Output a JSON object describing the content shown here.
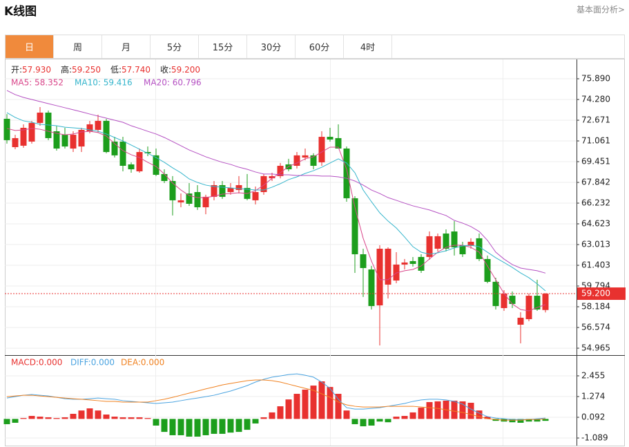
{
  "header": {
    "title": "K线图",
    "link": "基本面分析>"
  },
  "tabs": [
    "日",
    "周",
    "月",
    "5分",
    "15分",
    "30分",
    "60分",
    "4时"
  ],
  "active_tab": 0,
  "chart_data": [
    {
      "type": "candlestick",
      "info": [
        {
          "label": "开:",
          "value": "57.930"
        },
        {
          "label": "高:",
          "value": "59.250"
        },
        {
          "label": "低:",
          "value": "57.740"
        },
        {
          "label": "收:",
          "value": "59.200"
        }
      ],
      "up_color": "#e8312f",
      "down_color": "#1c9e1c",
      "open": [
        72.78,
        70.58,
        70.69,
        71.01,
        72.46,
        73.26,
        71.81,
        71.54,
        70.47,
        70.63,
        71.81,
        71.92,
        72.62,
        71.01,
        71.01,
        69.24,
        68.7,
        70.2,
        69.94,
        68.49,
        67.95,
        66.29,
        66.98,
        67.09,
        65.91,
        66.72,
        67.63,
        67.09,
        67.25,
        67.41,
        66.45,
        67.09,
        68.16,
        68.33,
        69.24,
        69.13,
        69.77,
        69.94,
        69.4,
        71.38,
        71.28,
        70.47,
        66.61,
        62.26,
        61.08,
        58.29,
        59.9,
        60.22,
        61.46,
        61.73,
        62.05,
        62.05,
        62.69,
        63.87,
        64.03,
        62.96,
        62.91,
        63.5,
        61.89,
        60.12,
        58.08,
        59.04,
        56.79,
        57.22,
        59.04,
        57.93
      ],
      "high": [
        73.15,
        71.54,
        72.35,
        72.62,
        73.69,
        73.42,
        72.24,
        72.08,
        71.81,
        72.08,
        72.62,
        73.1,
        72.78,
        71.38,
        71.38,
        69.4,
        70.47,
        70.63,
        70.47,
        68.86,
        68.33,
        66.98,
        67.79,
        67.63,
        66.88,
        67.95,
        67.95,
        67.79,
        68.33,
        68.49,
        67.52,
        68.49,
        68.59,
        69.35,
        69.67,
        70.2,
        70.47,
        70.1,
        71.81,
        72.08,
        72.35,
        70.63,
        66.77,
        62.69,
        61.35,
        62.96,
        62.8,
        62.42,
        61.89,
        62.05,
        62.26,
        64.03,
        63.87,
        64.19,
        64.84,
        63.23,
        63.5,
        63.87,
        62.16,
        60.44,
        59.47,
        59.37,
        57.76,
        59.21,
        60.28,
        59.25
      ],
      "low": [
        70.85,
        70.42,
        70.53,
        70.85,
        72.24,
        71.12,
        70.31,
        70.47,
        70.2,
        70.2,
        71.65,
        71.71,
        70.1,
        69.77,
        68.7,
        68.59,
        68.59,
        69.88,
        68.33,
        67.79,
        65.27,
        65.91,
        66.02,
        65.7,
        65.37,
        66.45,
        66.56,
        66.88,
        66.98,
        66.45,
        66.13,
        66.88,
        67.95,
        68.16,
        68.7,
        68.92,
        69.56,
        68.86,
        69.13,
        71.01,
        70.47,
        66.34,
        60.81,
        58.94,
        57.97,
        55.18,
        58.83,
        60.01,
        61.08,
        61.3,
        60.81,
        61.83,
        62.48,
        62.48,
        62.16,
        62.05,
        62.69,
        61.73,
        60.01,
        57.97,
        57.86,
        58.08,
        55.34,
        57.06,
        57.86,
        57.74
      ],
      "close": [
        71.12,
        71.28,
        72.08,
        72.46,
        73.26,
        71.28,
        70.47,
        70.63,
        71.54,
        71.92,
        72.35,
        72.62,
        70.2,
        69.94,
        69.13,
        68.86,
        70.2,
        70.1,
        68.43,
        67.95,
        66.45,
        66.45,
        66.18,
        65.91,
        66.72,
        67.63,
        66.72,
        67.41,
        67.63,
        66.56,
        67.09,
        68.33,
        68.33,
        69.13,
        68.86,
        69.94,
        69.94,
        69.13,
        71.38,
        71.17,
        70.47,
        66.61,
        62.26,
        61.19,
        58.24,
        62.69,
        62.69,
        61.46,
        61.62,
        61.51,
        60.98,
        63.66,
        63.66,
        62.69,
        62.8,
        62.26,
        63.23,
        61.89,
        60.12,
        58.24,
        59.21,
        58.4,
        57.33,
        59.04,
        57.97,
        59.2
      ],
      "series": [
        {
          "name": "MA5: 58.352",
          "color": "#d9468a",
          "values": [
            72.03,
            71.87,
            71.92,
            72.03,
            71.97,
            71.81,
            71.65,
            71.54,
            71.6,
            71.76,
            71.81,
            71.71,
            71.44,
            70.85,
            70.31,
            69.99,
            69.77,
            69.4,
            69.08,
            68.49,
            67.79,
            67.25,
            66.82,
            66.66,
            66.66,
            66.77,
            66.93,
            66.98,
            67.04,
            66.98,
            67.2,
            67.63,
            68.16,
            68.59,
            69.08,
            69.35,
            69.67,
            69.83,
            70.2,
            70.58,
            70.58,
            68.86,
            65.91,
            63.5,
            61.73,
            60.28,
            60.28,
            60.81,
            60.98,
            61.08,
            61.35,
            61.89,
            62.42,
            62.8,
            62.96,
            62.96,
            62.8,
            62.42,
            61.35,
            60.28,
            59.21,
            58.4,
            57.97,
            57.86,
            58.13,
            58.352
          ]
        },
        {
          "name": "MA10: 59.416",
          "color": "#35b5cc",
          "values": [
            73.26,
            72.89,
            72.62,
            72.51,
            72.35,
            72.3,
            72.24,
            72.13,
            72.08,
            72.03,
            71.92,
            71.81,
            71.6,
            71.33,
            71.06,
            70.74,
            70.42,
            70.1,
            69.77,
            69.4,
            68.97,
            68.59,
            68.11,
            67.84,
            67.63,
            67.52,
            67.47,
            67.41,
            67.36,
            67.31,
            67.25,
            67.25,
            67.47,
            67.74,
            68.06,
            68.27,
            68.54,
            68.75,
            69.02,
            69.35,
            69.67,
            69.35,
            68.59,
            67.25,
            66.34,
            65.48,
            64.84,
            64.3,
            63.6,
            62.85,
            62.42,
            62.26,
            62.37,
            62.53,
            62.75,
            62.91,
            62.96,
            62.85,
            62.42,
            61.99,
            61.62,
            61.24,
            60.81,
            60.44,
            59.96,
            59.416
          ]
        },
        {
          "name": "MA20: 60.796",
          "color": "#b44fc2",
          "values": [
            74.98,
            74.66,
            74.44,
            74.28,
            74.12,
            73.96,
            73.8,
            73.64,
            73.48,
            73.32,
            73.15,
            72.99,
            72.83,
            72.67,
            72.51,
            72.24,
            72.03,
            71.81,
            71.6,
            71.33,
            71.01,
            70.69,
            70.36,
            70.1,
            69.83,
            69.61,
            69.4,
            69.24,
            69.02,
            68.86,
            68.65,
            68.49,
            68.49,
            68.43,
            68.43,
            68.38,
            68.38,
            68.38,
            68.33,
            68.33,
            68.27,
            68.16,
            67.95,
            67.63,
            67.25,
            66.98,
            66.66,
            66.45,
            66.23,
            66.02,
            65.86,
            65.7,
            65.48,
            65.27,
            64.89,
            64.68,
            64.41,
            64.03,
            63.34,
            62.42,
            61.89,
            61.46,
            61.19,
            61.08,
            60.98,
            60.796
          ]
        }
      ],
      "last_price": {
        "value": 59.2,
        "label": "59.200"
      },
      "ylim": [
        54.535,
        77.285
      ],
      "yticks": [
        {
          "value": 75.89,
          "label": "75.890"
        },
        {
          "value": 74.28,
          "label": "74.280"
        },
        72.671,
        71.061,
        69.451,
        67.842,
        66.232,
        64.623,
        63.013,
        61.403,
        59.794,
        58.184,
        56.574,
        54.965
      ],
      "grid": true
    },
    {
      "type": "macd",
      "series": [
        {
          "name": "MACD:0.000",
          "kind": "bar",
          "color": "#e8312f",
          "down_color": "#1c9e1c",
          "values": [
            -0.3,
            -0.22,
            0.05,
            0.17,
            0.13,
            0.09,
            0.05,
            0.09,
            0.29,
            0.48,
            0.6,
            0.48,
            0.25,
            0.13,
            0.09,
            0.09,
            0.09,
            0.05,
            -0.38,
            -0.74,
            -0.93,
            -0.93,
            -1.01,
            -1.01,
            -0.93,
            -0.85,
            -0.85,
            -0.78,
            -0.74,
            -0.62,
            -0.26,
            0.09,
            0.37,
            0.72,
            1.11,
            1.43,
            1.67,
            1.9,
            2.14,
            1.82,
            1.43,
            0.48,
            -0.3,
            -0.42,
            -0.38,
            -0.15,
            -0.19,
            0.13,
            0.17,
            0.37,
            0.64,
            0.96,
            1.0,
            1.04,
            1.04,
            1.0,
            0.92,
            0.48,
            0.13,
            -0.11,
            -0.15,
            -0.19,
            -0.22,
            -0.15,
            -0.15,
            -0.11
          ]
        },
        {
          "name": "DIFF:0.000",
          "kind": "line",
          "color": "#4aa3e0",
          "values": [
            1.19,
            1.27,
            1.35,
            1.39,
            1.35,
            1.31,
            1.23,
            1.15,
            1.12,
            1.12,
            1.15,
            1.19,
            1.15,
            1.12,
            1.04,
            1.0,
            0.96,
            0.92,
            0.88,
            0.92,
            0.96,
            1.04,
            1.12,
            1.19,
            1.27,
            1.35,
            1.47,
            1.59,
            1.74,
            1.9,
            2.1,
            2.26,
            2.38,
            2.45,
            2.53,
            2.57,
            2.49,
            2.38,
            2.1,
            1.74,
            1.12,
            0.64,
            0.56,
            0.56,
            0.6,
            0.64,
            0.72,
            0.8,
            0.88,
            1.0,
            1.08,
            1.12,
            1.12,
            1.08,
            1.0,
            0.84,
            0.56,
            0.33,
            0.13,
            0.05,
            0.01,
            -0.03,
            -0.03,
            -0.03,
            0.01,
            0.05
          ]
        },
        {
          "name": "DEA:0.000",
          "kind": "line",
          "color": "#f0801e",
          "values": [
            1.27,
            1.31,
            1.35,
            1.35,
            1.31,
            1.27,
            1.23,
            1.19,
            1.15,
            1.12,
            1.08,
            1.04,
            1.0,
            1.0,
            0.96,
            0.96,
            0.96,
            0.96,
            1.04,
            1.12,
            1.23,
            1.35,
            1.47,
            1.59,
            1.71,
            1.82,
            1.94,
            2.02,
            2.1,
            2.18,
            2.22,
            2.22,
            2.18,
            2.1,
            1.98,
            1.86,
            1.74,
            1.63,
            1.43,
            1.23,
            0.96,
            0.8,
            0.72,
            0.68,
            0.68,
            0.68,
            0.72,
            0.72,
            0.72,
            0.72,
            0.68,
            0.64,
            0.6,
            0.52,
            0.44,
            0.37,
            0.25,
            0.13,
            0.01,
            -0.03,
            -0.07,
            -0.07,
            -0.07,
            -0.03,
            -0.03,
            0.01
          ]
        }
      ],
      "ylim": [
        -1.522,
        3.597
      ],
      "yticks": [
        2.455,
        1.274,
        0.092,
        -1.089
      ],
      "grid": true
    }
  ]
}
